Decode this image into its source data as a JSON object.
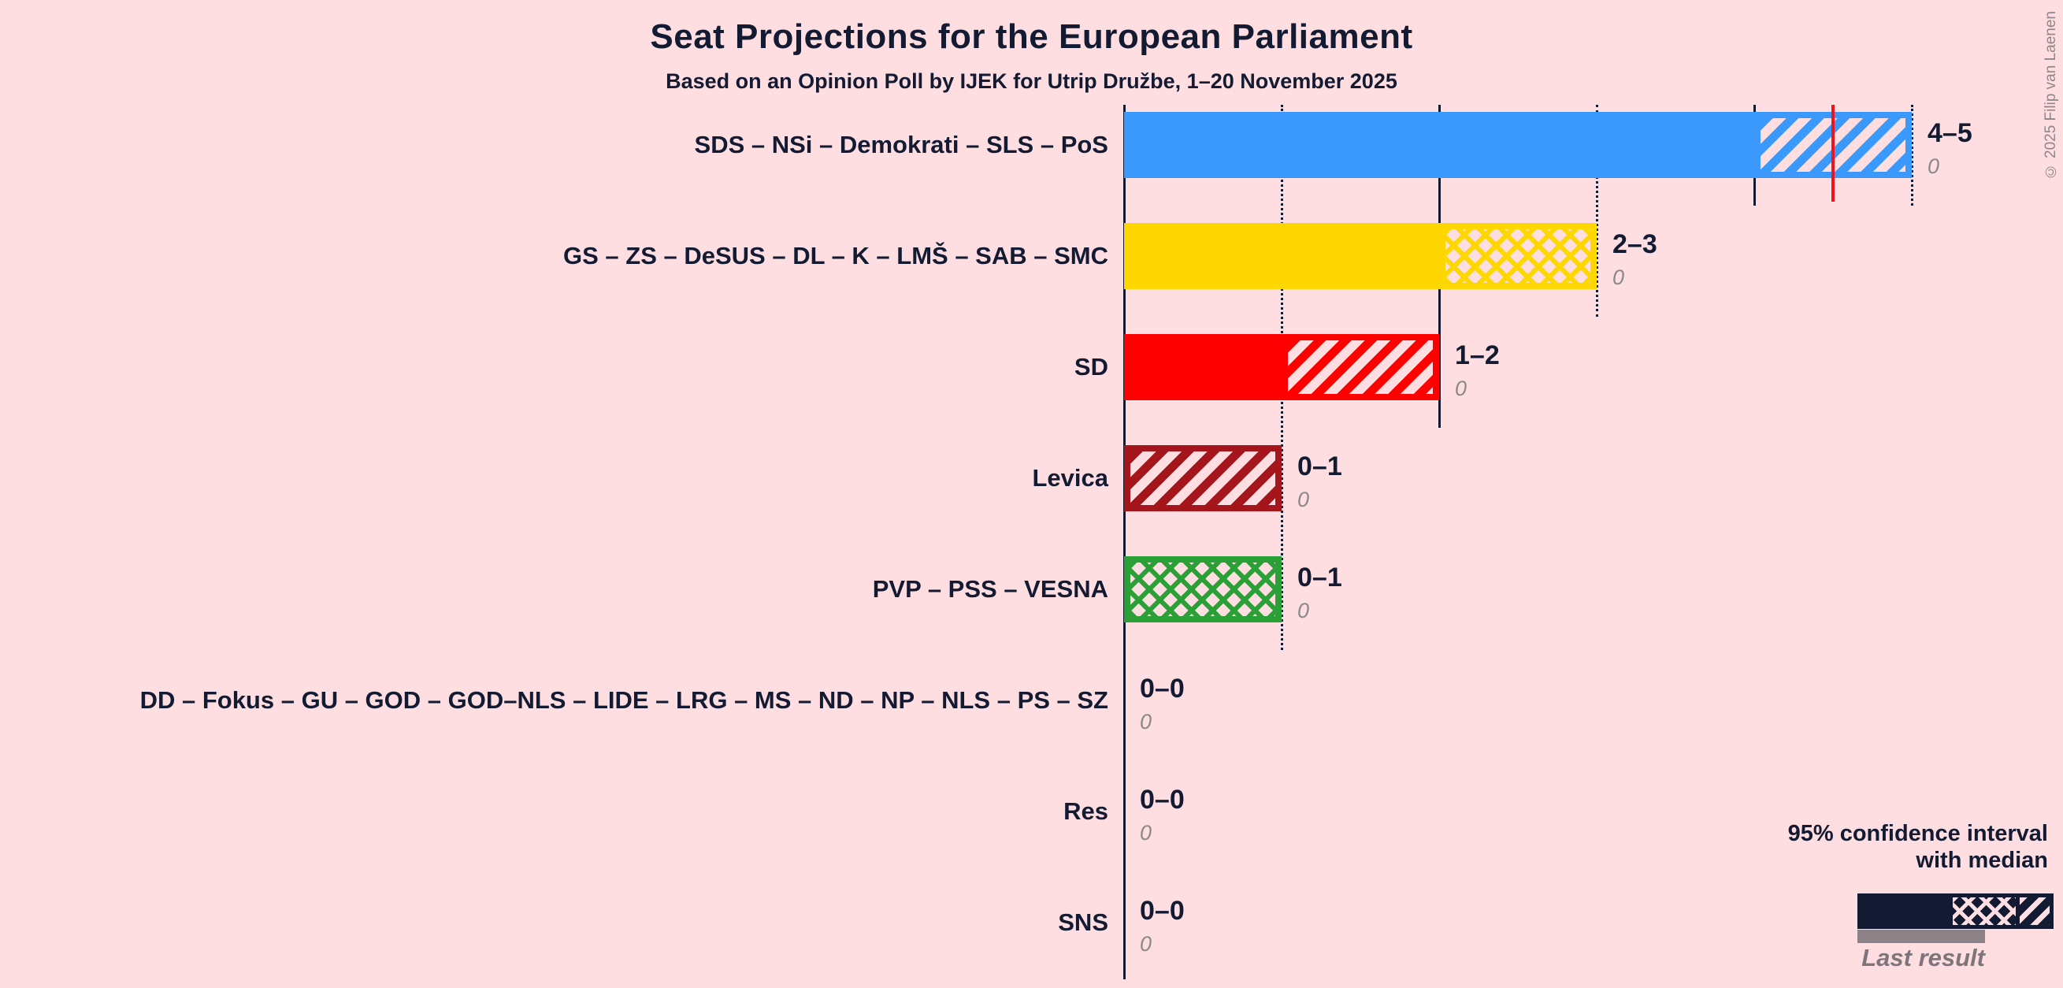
{
  "title": "Seat Projections for the European Parliament",
  "subtitle": "Based on an Opinion Poll by IJEK for Utrip Družbe, 1–20 November 2025",
  "copyright": "© 2025 Filip van Laenen",
  "colors": {
    "background": "#FFDEE2",
    "text": "#131B33",
    "gray_text": "#8A8A8A",
    "median_line": "#EE1520",
    "legend_last_result_bar": "#8D8287"
  },
  "legend": {
    "line1": "95% confidence interval",
    "line2": "with median",
    "last_result_label": "Last result"
  },
  "chart_data": {
    "type": "bar",
    "title": "Seat Projections for the European Parliament",
    "subtitle": "Based on an Opinion Poll by IJEK for Utrip Družbe, 1–20 November 2025",
    "orientation": "horizontal",
    "xlim": [
      0,
      5
    ],
    "x_unit": "seats",
    "gridlines": {
      "solid_at": [
        2,
        4
      ],
      "dotted_at": [
        1,
        3,
        5
      ],
      "axis_at": 0
    },
    "legend_position": "bottom-right",
    "rows": [
      {
        "label": "SDS – NSi – Demokrati – SLS – PoS",
        "ci": "4–5",
        "low": 4,
        "high": 5,
        "median": 4.5,
        "last_result": "0",
        "color": "#3B99FB",
        "hatch": "diagonal"
      },
      {
        "label": "GS – ZS – DeSUS – DL – K – LMŠ – SAB – SMC",
        "ci": "2–3",
        "low": 2,
        "high": 3,
        "median": null,
        "last_result": "0",
        "color": "#FFD700",
        "hatch": "cross"
      },
      {
        "label": "SD",
        "ci": "1–2",
        "low": 1,
        "high": 2,
        "median": null,
        "last_result": "0",
        "color": "#FF0000",
        "hatch": "diagonal"
      },
      {
        "label": "Levica",
        "ci": "0–1",
        "low": 0,
        "high": 1,
        "median": null,
        "last_result": "0",
        "color": "#A4161C",
        "hatch": "diagonal"
      },
      {
        "label": "PVP – PSS – VESNA",
        "ci": "0–1",
        "low": 0,
        "high": 1,
        "median": null,
        "last_result": "0",
        "color": "#2AA037",
        "hatch": "cross"
      },
      {
        "label": "DD – Fokus – GU – GOD – GOD–NLS – LIDE – LRG – MS – ND – NP – NLS – PS – SZ",
        "ci": "0–0",
        "low": 0,
        "high": 0,
        "median": null,
        "last_result": "0",
        "color": "#131B33",
        "hatch": "none"
      },
      {
        "label": "Res",
        "ci": "0–0",
        "low": 0,
        "high": 0,
        "median": null,
        "last_result": "0",
        "color": "#131B33",
        "hatch": "none"
      },
      {
        "label": "SNS",
        "ci": "0–0",
        "low": 0,
        "high": 0,
        "median": null,
        "last_result": "0",
        "color": "#131B33",
        "hatch": "none"
      }
    ]
  }
}
